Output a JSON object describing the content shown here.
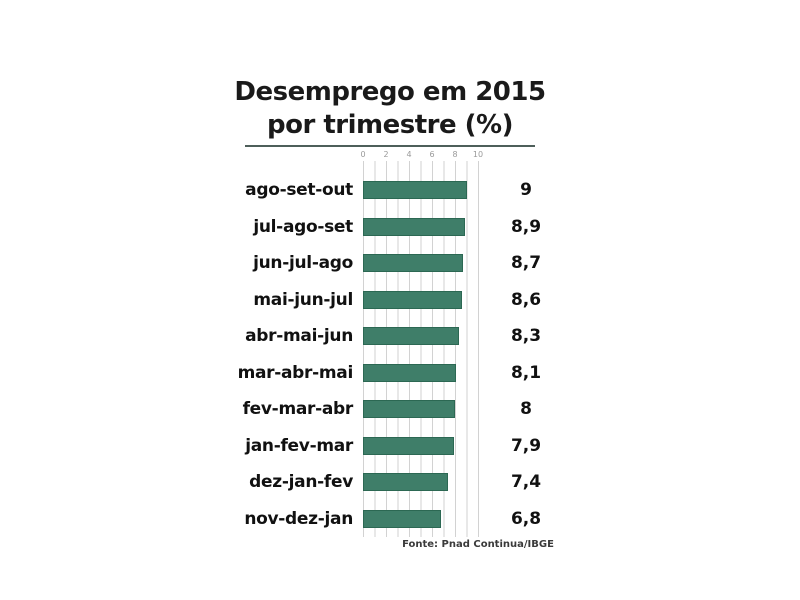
{
  "title": {
    "line1": "Desemprego em 2015",
    "line2": "por trimestre (%)"
  },
  "source": "Fonte: Pnad Continua/IBGE",
  "colors": {
    "background": "#ffffff",
    "bar_fill": "#3F7E69",
    "bar_border": "#2C6853",
    "grid_line": "#d2d2d2",
    "axis_tick_text": "#9a9a9a",
    "separator": "#4e5f5a",
    "title_text": "#1a1a1a",
    "label_text": "#111111",
    "source_text": "#3a3a3a"
  },
  "chart_data": {
    "type": "bar",
    "orientation": "horizontal",
    "title": "Desemprego em 2015 por trimestre (%)",
    "categories": [
      "ago-set-out",
      "jul-ago-set",
      "jun-jul-ago",
      "mai-jun-jul",
      "abr-mai-jun",
      "mar-abr-mai",
      "fev-mar-abr",
      "jan-fev-mar",
      "dez-jan-fev",
      "nov-dez-jan"
    ],
    "values": [
      9,
      8.9,
      8.7,
      8.6,
      8.3,
      8.1,
      8,
      7.9,
      7.4,
      6.8
    ],
    "value_labels": [
      "9",
      "8,9",
      "8,7",
      "8,6",
      "8,3",
      "8,1",
      "8",
      "7,9",
      "7,4",
      "6,8"
    ],
    "xlabel": "",
    "ylabel": "",
    "xlim": [
      0,
      10
    ],
    "x_ticks": [
      0,
      2,
      4,
      6,
      8,
      10
    ],
    "x_minor_tick_step": 1,
    "grid": true,
    "legend": false,
    "axis_position": "top",
    "source": "Fonte: Pnad Continua/IBGE"
  }
}
